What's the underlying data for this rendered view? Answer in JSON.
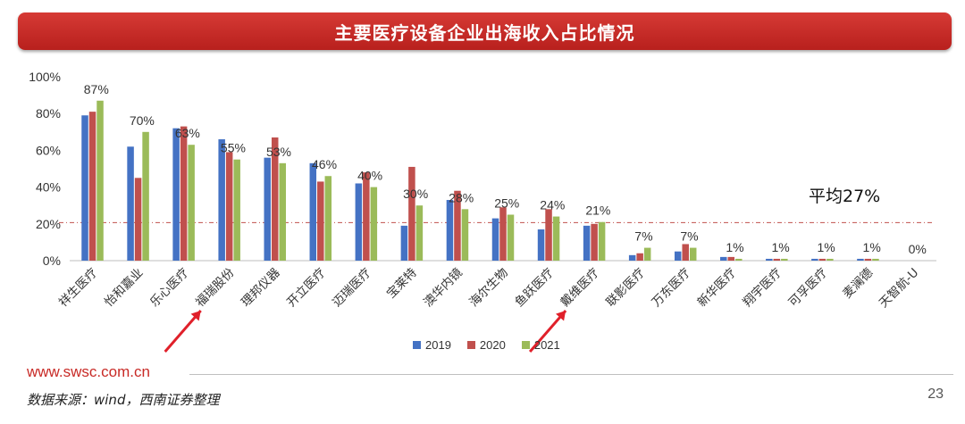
{
  "title": "主要医疗设备企业出海收入占比情况",
  "footer": {
    "url": "www.swsc.com.cn",
    "source": "数据来源：wind，西南证券整理",
    "page_number": "23"
  },
  "colors": {
    "series_2019": "#4472c4",
    "series_2020": "#c0504d",
    "series_2021": "#9bbb59",
    "average_line": "#c0504d",
    "arrow": "#e0202a"
  },
  "chart_data": {
    "type": "bar",
    "categories": [
      "祥生医疗",
      "怡和嘉业",
      "乐心医疗",
      "福瑞股份",
      "理邦仪器",
      "开立医疗",
      "迈瑞医疗",
      "宝莱特",
      "澳华内镜",
      "海尔生物",
      "鱼跃医疗",
      "戴维医疗",
      "联影医疗",
      "万东医疗",
      "新华医疗",
      "翔宇医疗",
      "可孚医疗",
      "麦澜德",
      "天智航-U"
    ],
    "series": [
      {
        "name": "2019",
        "values": [
          79,
          62,
          72,
          66,
          56,
          53,
          42,
          19,
          33,
          23,
          17,
          19,
          3,
          5,
          2,
          1,
          1,
          1,
          0
        ]
      },
      {
        "name": "2020",
        "values": [
          81,
          45,
          73,
          59,
          67,
          43,
          48,
          51,
          38,
          29,
          28,
          20,
          4,
          9,
          2,
          1,
          1,
          1,
          0
        ]
      },
      {
        "name": "2021",
        "values": [
          87,
          70,
          63,
          55,
          53,
          46,
          40,
          30,
          28,
          25,
          24,
          21,
          7,
          7,
          1,
          1,
          1,
          1,
          0
        ]
      }
    ],
    "data_labels": [
      "87%",
      "70%",
      "63%",
      "55%",
      "53%",
      "46%",
      "40%",
      "30%",
      "28%",
      "25%",
      "24%",
      "21%",
      "7%",
      "7%",
      "1%",
      "1%",
      "1%",
      "1%",
      "0%"
    ],
    "ylim": [
      0,
      100
    ],
    "yticks": [
      "0%",
      "20%",
      "40%",
      "60%",
      "80%",
      "100%"
    ],
    "average": {
      "value": 27,
      "label": "平均27%"
    },
    "highlighted_categories": [
      "福瑞股份",
      "戴维医疗"
    ],
    "legend_position": "bottom",
    "grid": false
  }
}
